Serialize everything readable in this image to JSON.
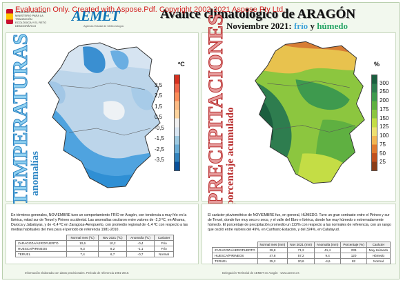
{
  "watermark": "Evaluation Only. Created with Aspose.Pdf. Copyright 2002-2021 Aspose Pty Ltd.",
  "header": {
    "ministry_logo_text": "GOBIERNO DE ESPAÑA · MINISTERIO PARA LA TRANSICIÓN ECOLÓGICA Y EL RETO DEMOGRÁFICO",
    "aemet_mark": "AEMET",
    "aemet_sub": "Agencia Estatal de Meteorología",
    "title_main": "Avance climatológico de ARAGÓN",
    "title_period": "Noviembre 2021:",
    "title_word1": "frío",
    "title_conj": "y",
    "title_word2": "húmedo"
  },
  "temperature": {
    "vertical_title": "TEMPERATURAS",
    "vertical_subtitle": "anomalías",
    "legend_unit": "ºC",
    "legend_ticks": [
      "3,5",
      "2,5",
      "1,5",
      "0,5",
      "-0,5",
      "-1,5",
      "-2,5",
      "-3,5"
    ],
    "legend_colors": [
      "#d7301f",
      "#ef6548",
      "#fc8d59",
      "#fdbb84",
      "#fdd49e",
      "#f0f0f0",
      "#d9e6f2",
      "#9ecae1",
      "#6baed6",
      "#3182bd",
      "#08519c"
    ],
    "summary": "En términos generales, NOVIEMBRE tuvo un comportamiento FRÍO en Aragón, con tendencia a muy frío en la Ibérica, mitad sur de Teruel y Pirineo occidental. Las anomalías oscilaron entre valores de -2,3 ºC, en Alhama, Daroca y Jabaloyas, y de -0,4 ºC en Zaragoza-Aeropuerto, con promedio regional de -1,4 ºC con respecto a las medias habituales del mes para el periodo de referencia 1981-2010.",
    "table": {
      "headers": [
        "",
        "Normal mes (ºC)",
        "Nov 2021 (ºC)",
        "Anomalía (ºC)",
        "Carácter"
      ],
      "rows": [
        [
          "ZARAGOZA/AEROPUERTO",
          "10,6",
          "10,2",
          "-0,4",
          "Frío"
        ],
        [
          "HUESCA/PIRINEOS",
          "9,3",
          "8,2",
          "-1,1",
          "Frío"
        ],
        [
          "TERUEL",
          "7,4",
          "6,7",
          "-0,7",
          "Normal"
        ]
      ]
    }
  },
  "precipitation": {
    "vertical_title": "PRECIPITACIONES",
    "vertical_subtitle": "porcentaje acumulado",
    "legend_unit": "%",
    "legend_ticks": [
      "300",
      "250",
      "200",
      "175",
      "150",
      "125",
      "100",
      "75",
      "50",
      "25"
    ],
    "legend_colors": [
      "#1b5e3f",
      "#2e7d4f",
      "#3e9a4e",
      "#5fb041",
      "#8cc63f",
      "#c4dd45",
      "#eee070",
      "#f2b652",
      "#e07a2f",
      "#c0501e",
      "#8b3d18"
    ],
    "summary": "El carácter pluviométrico de NOVIEMBRE fue, en general, HÚMEDO. Tuvo un gran contraste entre el Pirineo y sur de Teruel, donde fue muy seco o seco, y el valle del Ebro e Ibérica, donde fue muy húmedo o extremadamente húmedo. El porcentaje de precipitación promedio un 122% con respecto a las normales de referencia, con un rango que osciló entre valores del 49%, en Canfranc-Estación, y del 324%, en Calatayud.",
    "table": {
      "headers": [
        "",
        "Normal mes (mm)",
        "Nov 2021 (mm)",
        "Anomalía (mm)",
        "Porcentaje (%)",
        "Carácter"
      ],
      "rows": [
        [
          "ZARAGOZA/AEROPUERTO",
          "29,8",
          "71,2",
          "41,4",
          "239",
          "Muy Húmedo"
        ],
        [
          "HUESCA/PIRINEOS",
          "47,8",
          "57,2",
          "9,4",
          "120",
          "Húmedo"
        ],
        [
          "TERUEL",
          "25,2",
          "20,6",
          "-4,6",
          "82",
          "Normal"
        ]
      ]
    }
  },
  "footer": {
    "left": "Información elaborada con datos provisionales. Periodo de referencia 1981-2010.",
    "right": "Delegación Territorial de AEMET en Aragón · www.aemet.es"
  }
}
